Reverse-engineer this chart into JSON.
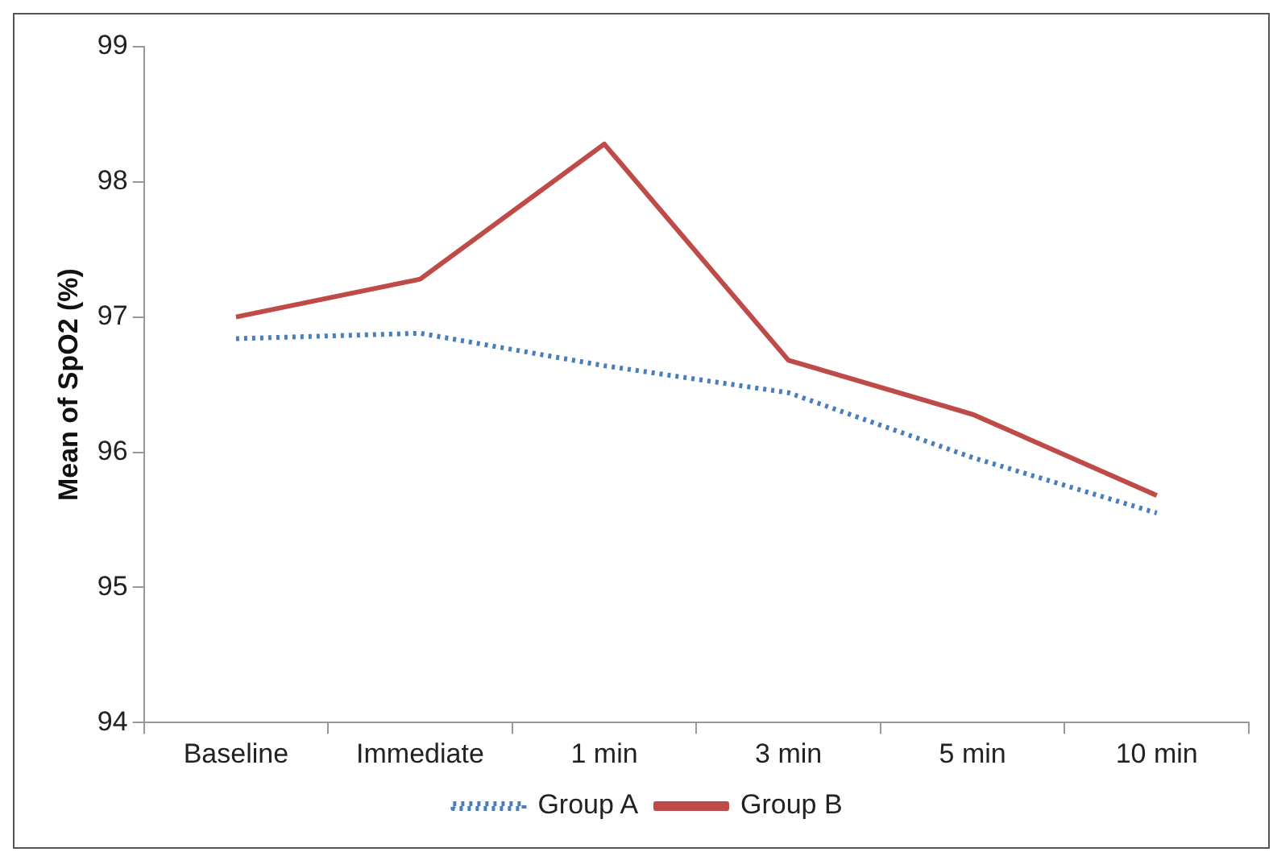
{
  "chart_data": {
    "type": "line",
    "ylabel": "Mean of SpO2 (%)",
    "categories": [
      "Baseline",
      "Immediate",
      "1 min",
      "3 min",
      "5 min",
      "10 min"
    ],
    "series": [
      {
        "name": "Group A",
        "color": "#4a7ebb",
        "line_style": "dotted",
        "values": [
          96.84,
          96.88,
          96.64,
          96.44,
          95.96,
          95.55
        ]
      },
      {
        "name": "Group B",
        "color": "#be4b48",
        "line_style": "solid",
        "values": [
          97.0,
          97.28,
          98.28,
          96.68,
          96.28,
          95.68
        ]
      }
    ],
    "ylim": [
      94,
      99
    ],
    "yticks": [
      94,
      95,
      96,
      97,
      98,
      99
    ],
    "grid": false,
    "legend": "bottom",
    "marker": "none"
  }
}
